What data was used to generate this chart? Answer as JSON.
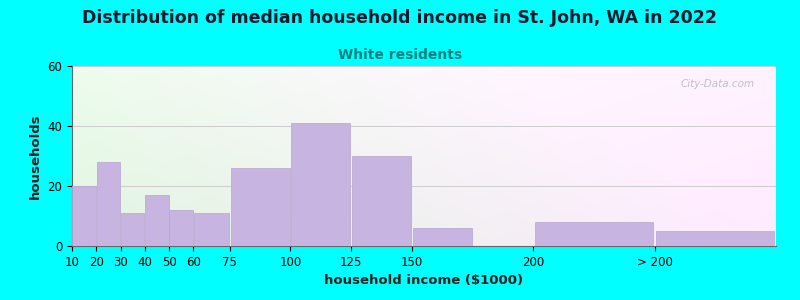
{
  "title": "Distribution of median household income in St. John, WA in 2022",
  "subtitle": "White residents",
  "xlabel": "household income ($1000)",
  "ylabel": "households",
  "background_color": "#00FFFF",
  "bar_color": "#c8b4e0",
  "bar_edge_color": "#b8a4d0",
  "title_fontsize": 12.5,
  "subtitle_fontsize": 10,
  "subtitle_color": "#008080",
  "axis_label_fontsize": 9.5,
  "tick_fontsize": 8.5,
  "ylim": [
    0,
    60
  ],
  "yticks": [
    0,
    20,
    40,
    60
  ],
  "categories": [
    "10",
    "20",
    "30",
    "40",
    "50",
    "60",
    "75",
    "100",
    "125",
    "150",
    "200",
    "> 200"
  ],
  "values": [
    20,
    28,
    11,
    17,
    12,
    11,
    26,
    41,
    30,
    6,
    8,
    5
  ],
  "bar_lefts": [
    10,
    20,
    30,
    40,
    50,
    60,
    75,
    100,
    125,
    150,
    200,
    250
  ],
  "bar_widths": [
    10,
    10,
    10,
    10,
    10,
    15,
    25,
    25,
    25,
    25,
    50,
    50
  ],
  "xtick_positions": [
    10,
    20,
    30,
    40,
    50,
    60,
    75,
    100,
    125,
    150,
    200,
    250
  ],
  "xlim_left": 10,
  "xlim_right": 300,
  "watermark": "City-Data.com"
}
